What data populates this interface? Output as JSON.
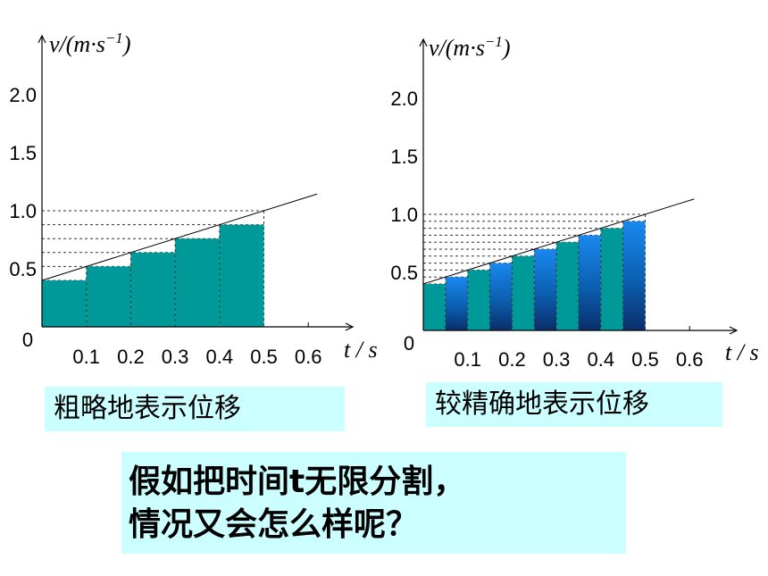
{
  "chart_data": [
    {
      "type": "bar",
      "function": "v = 1.2 t + 0.4",
      "ylabel": "v/(m·s",
      "ylabel_exp": "−1",
      "xlabel": "t / s",
      "origin_label": "0",
      "yticks": [
        "0.5",
        "1.0",
        "1.5",
        "2.0"
      ],
      "xticks": [
        "0.1",
        "0.2",
        "0.3",
        "0.4",
        "0.5",
        "0.6"
      ],
      "ylim": [
        0,
        2.0
      ],
      "xlim": [
        0,
        0.6
      ],
      "bar_width": 0.1,
      "x": [
        0,
        0.1,
        0.2,
        0.3,
        0.4
      ],
      "values": [
        0.4,
        0.52,
        0.64,
        0.76,
        0.88
      ],
      "colors": [
        "#009999"
      ],
      "caption": "粗略地表示位移"
    },
    {
      "type": "bar",
      "function": "v = 1.2 t + 0.4",
      "ylabel": "v/(m·s",
      "ylabel_exp": "−1",
      "xlabel": "t / s",
      "origin_label": "0",
      "yticks": [
        "0.5",
        "1.0",
        "1.5",
        "2.0"
      ],
      "xticks": [
        "0.1",
        "0.2",
        "0.3",
        "0.4",
        "0.5",
        "0.6"
      ],
      "ylim": [
        0,
        2.0
      ],
      "xlim": [
        0,
        0.6
      ],
      "bar_width": 0.05,
      "x": [
        0,
        0.05,
        0.1,
        0.15,
        0.2,
        0.25,
        0.3,
        0.35,
        0.4,
        0.45
      ],
      "values": [
        0.4,
        0.46,
        0.52,
        0.58,
        0.64,
        0.7,
        0.76,
        0.82,
        0.88,
        0.94
      ],
      "colors": [
        "#009999",
        "#1a7fe0"
      ],
      "caption": "较精确地表示位移"
    }
  ],
  "question": [
    "假如把时间t无限分割，",
    "情况又会怎么样呢？"
  ]
}
